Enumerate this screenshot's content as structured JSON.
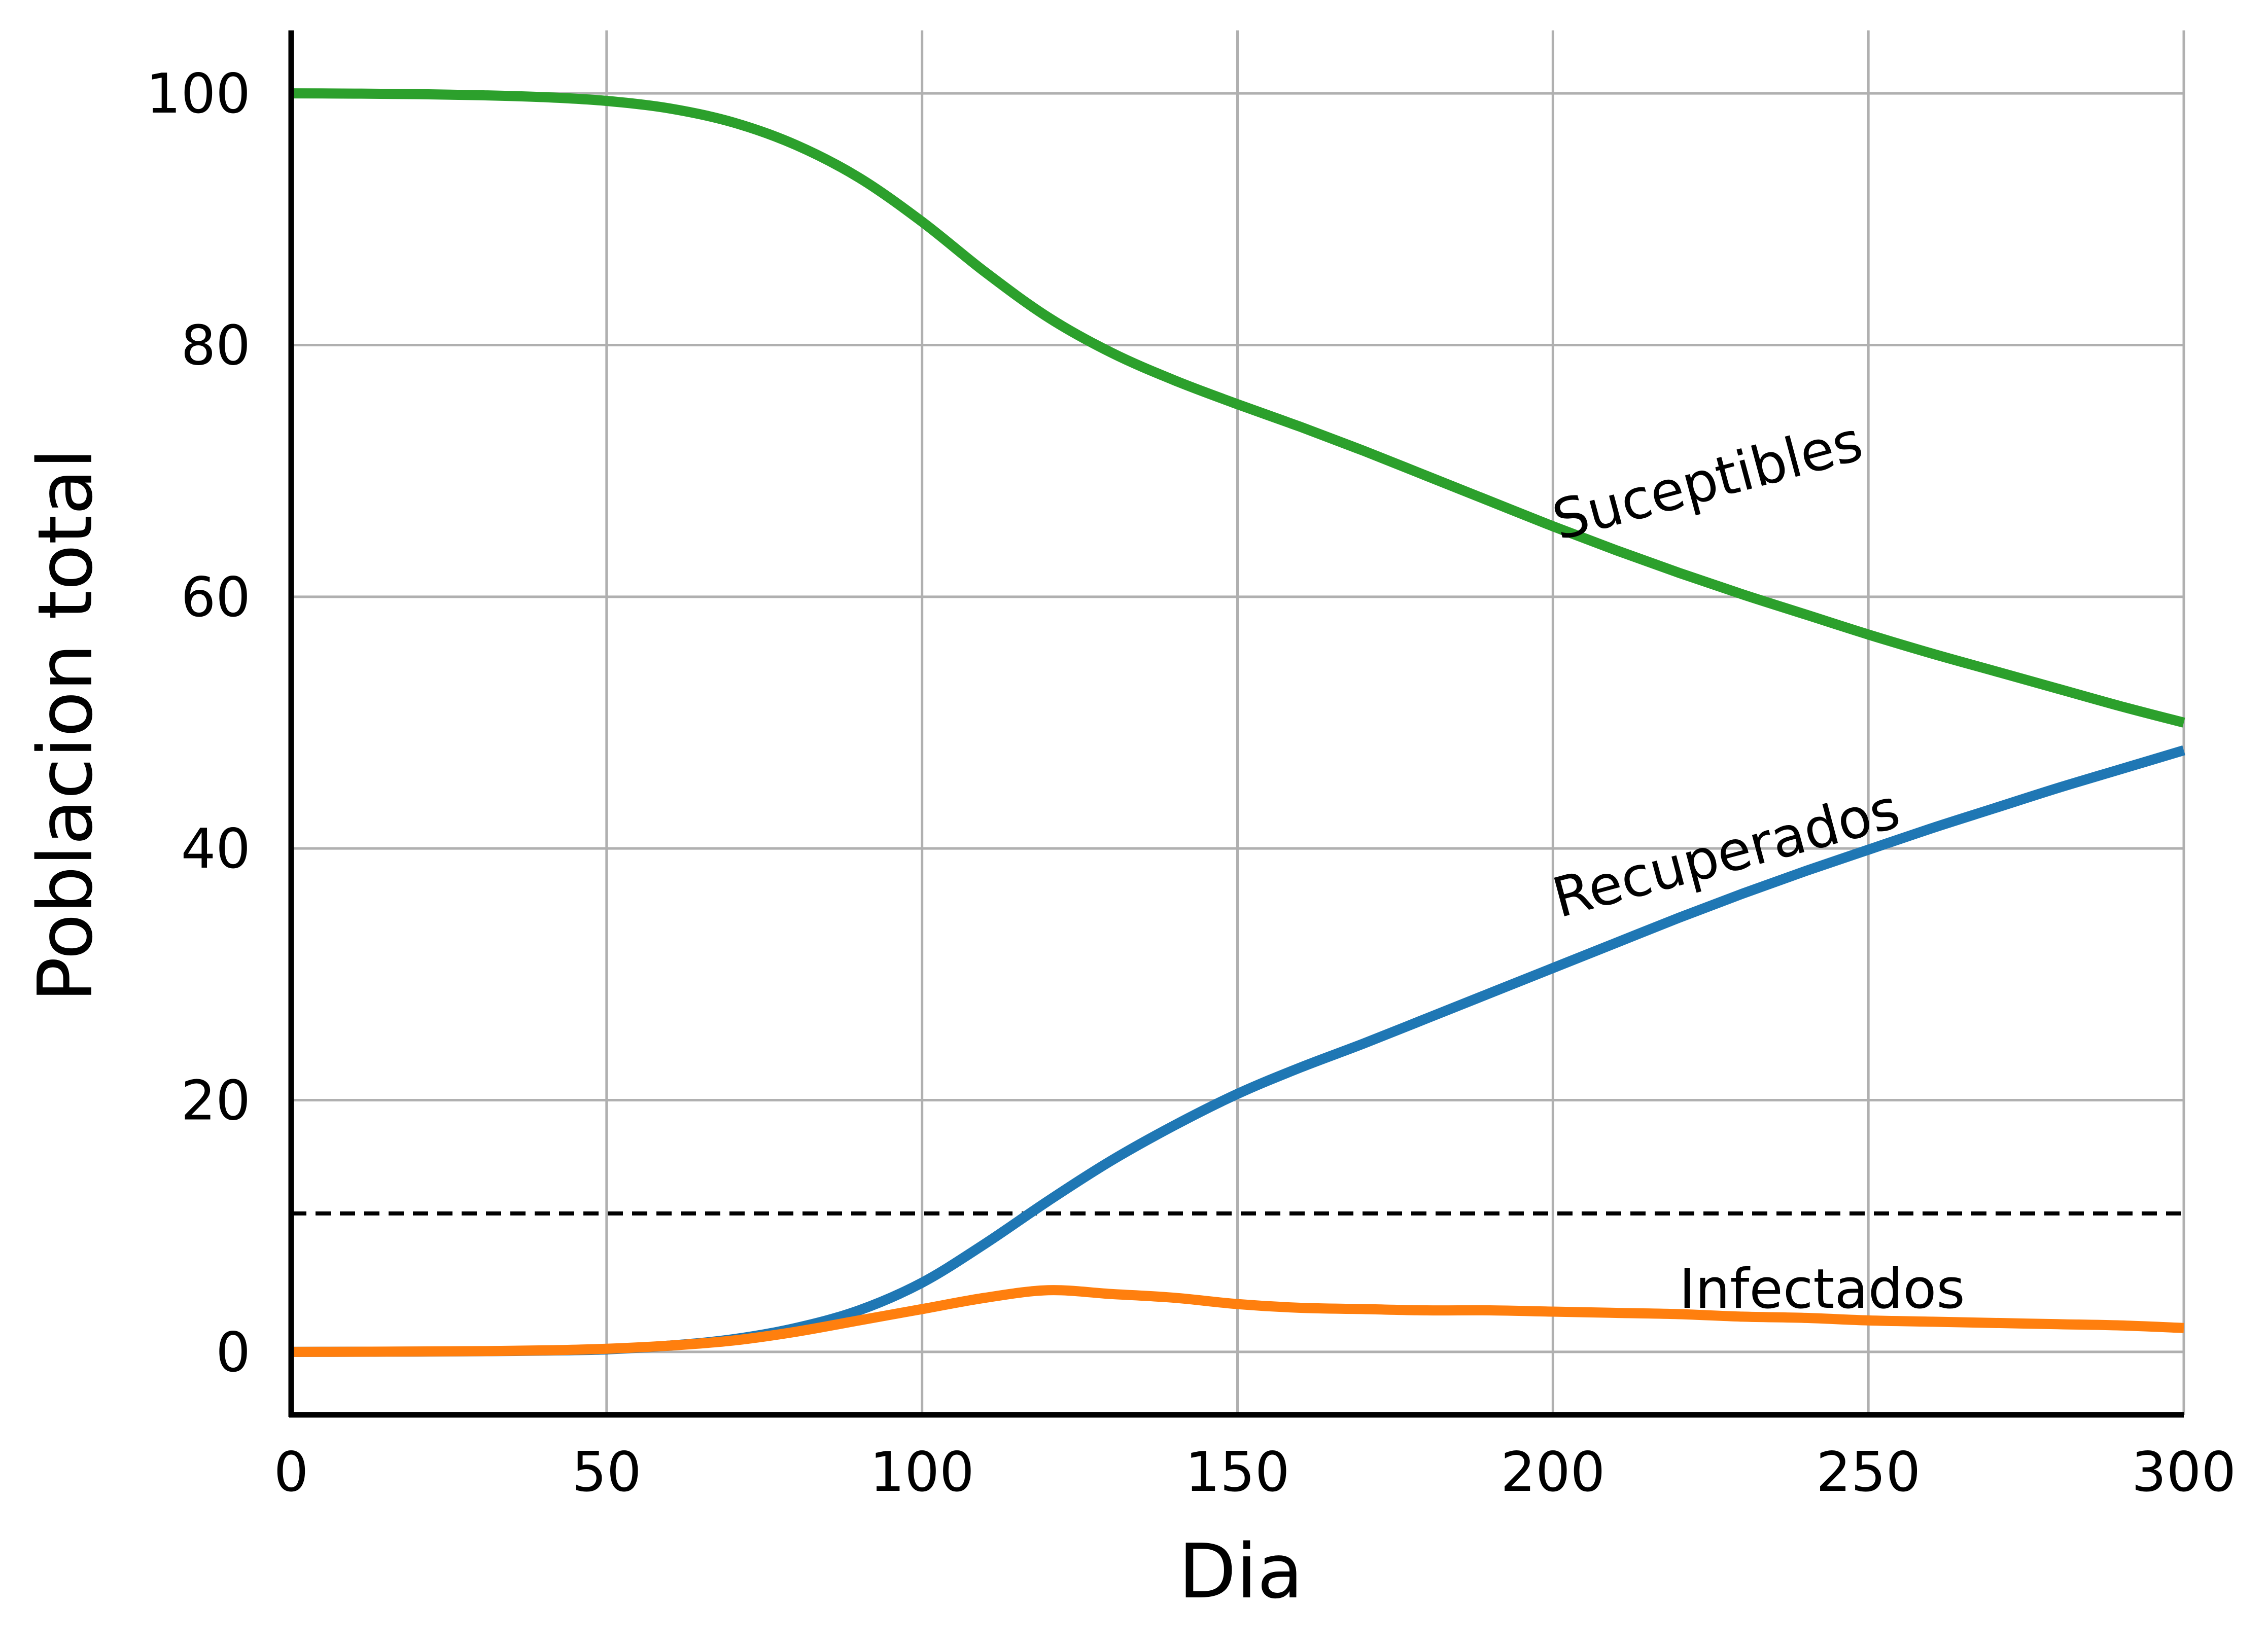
{
  "chart_data": {
    "type": "line",
    "title": "",
    "xlabel": "Dia",
    "ylabel": "Poblacion total",
    "xlim": [
      0,
      300
    ],
    "ylim": [
      -5,
      105
    ],
    "xticks": [
      0,
      50,
      100,
      150,
      200,
      250,
      300
    ],
    "yticks": [
      0,
      20,
      40,
      60,
      80,
      100
    ],
    "grid": true,
    "x": [
      0,
      10,
      20,
      30,
      40,
      50,
      60,
      70,
      80,
      90,
      100,
      110,
      120,
      130,
      140,
      150,
      160,
      170,
      180,
      190,
      200,
      210,
      220,
      230,
      240,
      250,
      260,
      270,
      280,
      290,
      300
    ],
    "series": [
      {
        "name": "Suceptibles",
        "color": "#2ca02c",
        "values": [
          100,
          99.98,
          99.94,
          99.85,
          99.7,
          99.4,
          98.8,
          97.7,
          95.9,
          93.3,
          89.8,
          85.8,
          82.2,
          79.4,
          77.2,
          75.3,
          73.5,
          71.6,
          69.6,
          67.6,
          65.6,
          63.7,
          61.9,
          60.2,
          58.6,
          57.0,
          55.5,
          54.1,
          52.7,
          51.3,
          50.0
        ]
      },
      {
        "name": "Recuperados",
        "color": "#1f77b4",
        "values": [
          0,
          0.01,
          0.02,
          0.05,
          0.1,
          0.2,
          0.5,
          1.0,
          1.9,
          3.3,
          5.5,
          8.6,
          12.0,
          15.2,
          18.0,
          20.5,
          22.6,
          24.5,
          26.5,
          28.5,
          30.5,
          32.5,
          34.5,
          36.4,
          38.2,
          39.9,
          41.6,
          43.2,
          44.8,
          46.3,
          47.8
        ]
      },
      {
        "name": "Infectados",
        "color": "#ff7f0e",
        "values": [
          0,
          0.01,
          0.03,
          0.06,
          0.12,
          0.25,
          0.5,
          0.9,
          1.6,
          2.5,
          3.4,
          4.3,
          4.9,
          4.6,
          4.3,
          3.8,
          3.5,
          3.4,
          3.3,
          3.3,
          3.2,
          3.1,
          3.0,
          2.8,
          2.7,
          2.5,
          2.4,
          2.3,
          2.2,
          2.1,
          1.9
        ]
      }
    ],
    "reference_line": {
      "y": 11.0,
      "style": "dashed",
      "color": "#000000"
    },
    "series_labels": [
      {
        "text": "Suceptibles",
        "x": 201,
        "y": 64.5,
        "angle": -15
      },
      {
        "text": "Recuperados",
        "x": 201,
        "y": 34.5,
        "angle": -15
      },
      {
        "text": "Infectados",
        "x": 220,
        "y": 3.5,
        "angle": 0
      }
    ],
    "colors": {
      "grid": "#b0b0b0",
      "axis": "#000000",
      "background": "#ffffff"
    }
  }
}
